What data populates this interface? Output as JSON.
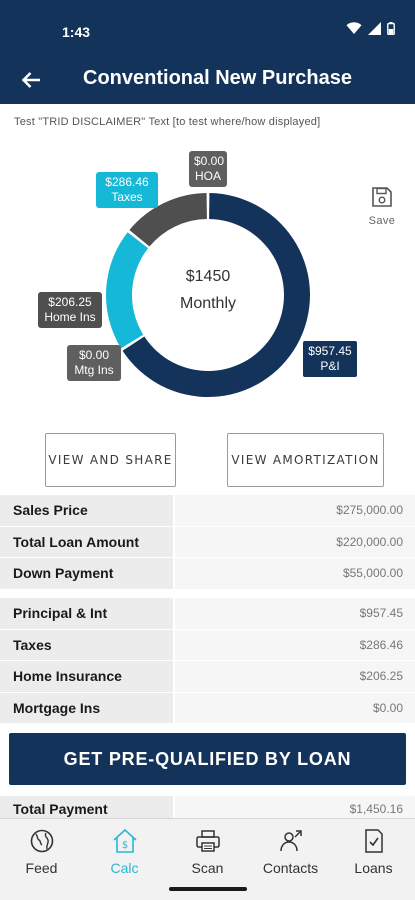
{
  "status": {
    "time": "1:43"
  },
  "header": {
    "title": "Conventional New Purchase"
  },
  "disclaimer": "Test \"TRID DISCLAIMER\" Text [to test where/how displayed]",
  "chart_data": {
    "type": "pie",
    "categories": [
      "P&I",
      "HOA",
      "Taxes",
      "Home Ins",
      "Mtg Ins"
    ],
    "values": [
      957.45,
      0.0,
      286.46,
      206.25,
      0.0
    ],
    "labels": [
      "$957.45",
      "$0.00",
      "$286.46",
      "$206.25",
      "$0.00"
    ],
    "colors": [
      "#14335a",
      "#5f5f5f",
      "#16b8d8",
      "#4f4f4f",
      "#5f5f5f"
    ],
    "center_amount": "$1450",
    "center_label": "Monthly"
  },
  "save": {
    "label": "Save",
    "icon": "save-icon"
  },
  "actions": {
    "share": "VIEW AND SHARE",
    "amortization": "VIEW AMORTIZATION"
  },
  "loan_summary": [
    {
      "label": "Sales Price",
      "value": "$275,000.00"
    },
    {
      "label": "Total Loan Amount",
      "value": "$220,000.00"
    },
    {
      "label": "Down Payment",
      "value": "$55,000.00"
    }
  ],
  "payment_breakdown": [
    {
      "label": "Principal & Int",
      "value": "$957.45"
    },
    {
      "label": "Taxes",
      "value": "$286.46"
    },
    {
      "label": "Home Insurance",
      "value": "$206.25"
    },
    {
      "label": "Mortgage Ins",
      "value": "$0.00"
    }
  ],
  "cta": "GET PRE-QUALIFIED BY LOAN",
  "total": {
    "label": "Total Payment",
    "value": "$1,450.16"
  },
  "nav": [
    {
      "label": "Feed",
      "icon": "globe-icon"
    },
    {
      "label": "Calc",
      "icon": "home-dollar-icon",
      "active": true
    },
    {
      "label": "Scan",
      "icon": "printer-icon"
    },
    {
      "label": "Contacts",
      "icon": "contacts-icon"
    },
    {
      "label": "Loans",
      "icon": "document-check-icon"
    }
  ]
}
